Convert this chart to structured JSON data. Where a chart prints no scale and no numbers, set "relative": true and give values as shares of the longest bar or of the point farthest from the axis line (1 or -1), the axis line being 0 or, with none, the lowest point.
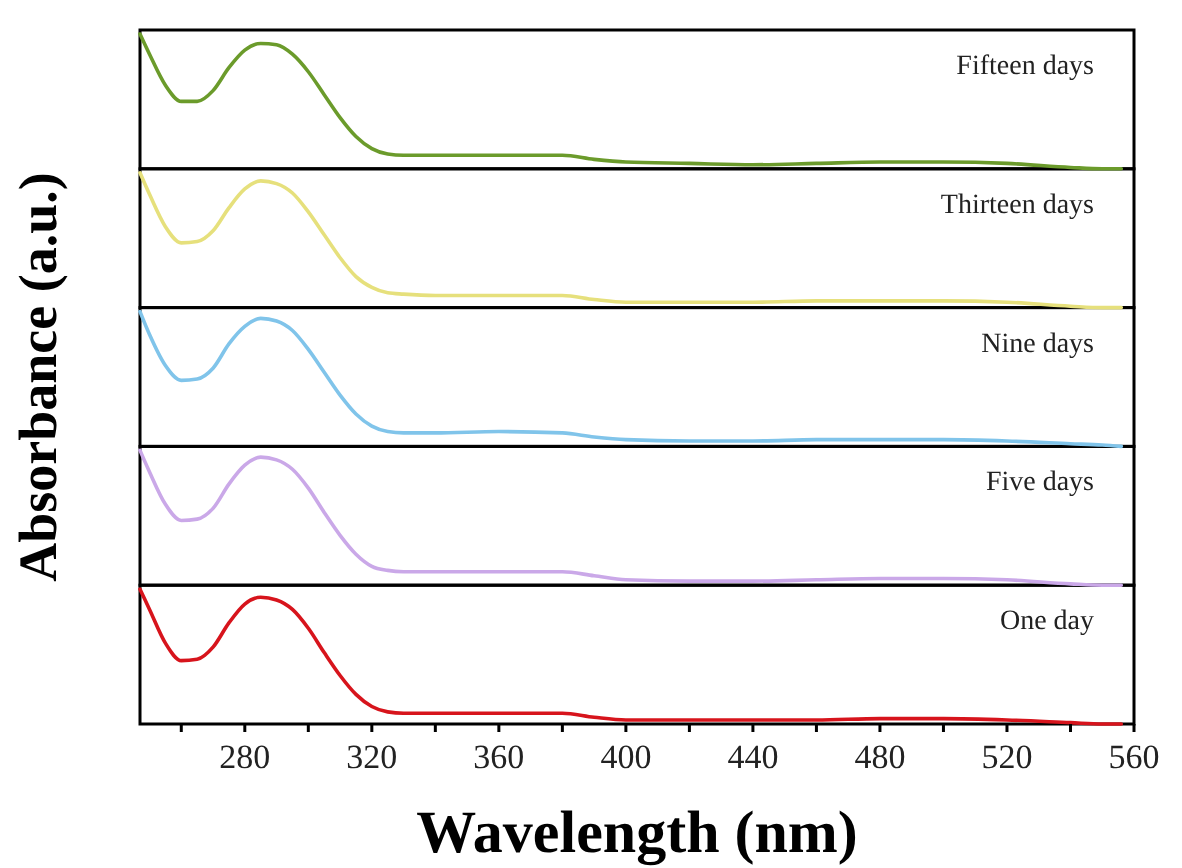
{
  "chart_data": [
    {
      "type": "line",
      "relative": true,
      "xlim": [
        247,
        560
      ],
      "tick_labels": false,
      "x": [
        247,
        250,
        255,
        260,
        265,
        270,
        275,
        280,
        285,
        290,
        295,
        300,
        305,
        310,
        315,
        320,
        325,
        330,
        340,
        360,
        380,
        390,
        400,
        420,
        440,
        460,
        480,
        500,
        520,
        540,
        550,
        556
      ],
      "series": [
        {
          "name": "Fifteen days",
          "color": "#6b9b2b",
          "values": [
            1.0,
            0.85,
            0.62,
            0.5,
            0.5,
            0.58,
            0.75,
            0.88,
            0.93,
            0.92,
            0.85,
            0.72,
            0.55,
            0.38,
            0.24,
            0.15,
            0.11,
            0.1,
            0.1,
            0.1,
            0.1,
            0.07,
            0.05,
            0.04,
            0.03,
            0.04,
            0.05,
            0.05,
            0.04,
            0.01,
            0.0,
            0.0
          ]
        }
      ]
    },
    {
      "type": "line",
      "relative": true,
      "xlim": [
        247,
        560
      ],
      "tick_labels": false,
      "x": [
        247,
        250,
        255,
        260,
        265,
        270,
        275,
        280,
        285,
        290,
        295,
        300,
        305,
        310,
        315,
        320,
        325,
        330,
        340,
        360,
        380,
        390,
        400,
        420,
        440,
        460,
        480,
        500,
        520,
        540,
        550,
        556
      ],
      "series": [
        {
          "name": "Thirteen days",
          "color": "#e6e07c",
          "values": [
            1.0,
            0.84,
            0.6,
            0.48,
            0.49,
            0.57,
            0.74,
            0.88,
            0.94,
            0.92,
            0.85,
            0.71,
            0.54,
            0.37,
            0.23,
            0.15,
            0.11,
            0.1,
            0.09,
            0.09,
            0.09,
            0.06,
            0.04,
            0.04,
            0.04,
            0.05,
            0.05,
            0.05,
            0.04,
            0.01,
            0.0,
            0.0
          ]
        }
      ]
    },
    {
      "type": "line",
      "relative": true,
      "xlim": [
        247,
        560
      ],
      "tick_labels": false,
      "ylabel": "Absorbance (a.u.)",
      "x": [
        247,
        250,
        255,
        260,
        265,
        270,
        275,
        280,
        285,
        290,
        295,
        300,
        305,
        310,
        315,
        320,
        325,
        330,
        340,
        360,
        380,
        390,
        400,
        420,
        440,
        460,
        480,
        500,
        520,
        540,
        550,
        556
      ],
      "series": [
        {
          "name": "Nine days",
          "color": "#80c4ea",
          "values": [
            1.0,
            0.83,
            0.6,
            0.49,
            0.5,
            0.58,
            0.76,
            0.89,
            0.95,
            0.93,
            0.86,
            0.72,
            0.55,
            0.38,
            0.24,
            0.15,
            0.11,
            0.1,
            0.1,
            0.11,
            0.1,
            0.07,
            0.05,
            0.04,
            0.04,
            0.05,
            0.05,
            0.05,
            0.04,
            0.02,
            0.01,
            0.0
          ]
        }
      ]
    },
    {
      "type": "line",
      "relative": true,
      "xlim": [
        247,
        560
      ],
      "tick_labels": false,
      "x": [
        247,
        250,
        255,
        260,
        265,
        270,
        275,
        280,
        285,
        290,
        295,
        300,
        305,
        310,
        315,
        320,
        325,
        330,
        340,
        360,
        380,
        390,
        400,
        420,
        440,
        460,
        480,
        500,
        520,
        540,
        550,
        556
      ],
      "series": [
        {
          "name": "Five days",
          "color": "#caa8e8",
          "values": [
            1.0,
            0.84,
            0.6,
            0.48,
            0.49,
            0.57,
            0.75,
            0.89,
            0.95,
            0.93,
            0.86,
            0.72,
            0.54,
            0.37,
            0.23,
            0.14,
            0.11,
            0.1,
            0.1,
            0.1,
            0.1,
            0.07,
            0.04,
            0.03,
            0.03,
            0.04,
            0.05,
            0.05,
            0.04,
            0.01,
            0.0,
            0.0
          ]
        }
      ]
    },
    {
      "type": "line",
      "relative": true,
      "xlim": [
        247,
        560
      ],
      "tick_labels": "x",
      "xlabel": "Wavelength (nm)",
      "xticks": [
        {
          "value": 260,
          "label": null
        },
        280,
        {
          "value": 300,
          "label": null
        },
        320,
        {
          "value": 340,
          "label": null
        },
        360,
        {
          "value": 380,
          "label": null
        },
        400,
        {
          "value": 420,
          "label": null
        },
        440,
        {
          "value": 460,
          "label": null
        },
        480,
        {
          "value": 500,
          "label": null
        },
        520,
        {
          "value": 540,
          "label": null
        },
        560
      ],
      "x": [
        247,
        250,
        255,
        260,
        265,
        270,
        275,
        280,
        285,
        290,
        295,
        300,
        305,
        310,
        315,
        320,
        325,
        330,
        340,
        360,
        380,
        390,
        400,
        420,
        440,
        460,
        480,
        500,
        520,
        540,
        550,
        556
      ],
      "series": [
        {
          "name": "One day",
          "color": "#d7141c",
          "values": [
            1.0,
            0.85,
            0.6,
            0.47,
            0.48,
            0.57,
            0.75,
            0.89,
            0.94,
            0.92,
            0.85,
            0.71,
            0.53,
            0.36,
            0.22,
            0.13,
            0.09,
            0.08,
            0.08,
            0.08,
            0.08,
            0.05,
            0.03,
            0.03,
            0.03,
            0.03,
            0.04,
            0.04,
            0.03,
            0.01,
            0.0,
            0.0
          ]
        }
      ]
    }
  ]
}
